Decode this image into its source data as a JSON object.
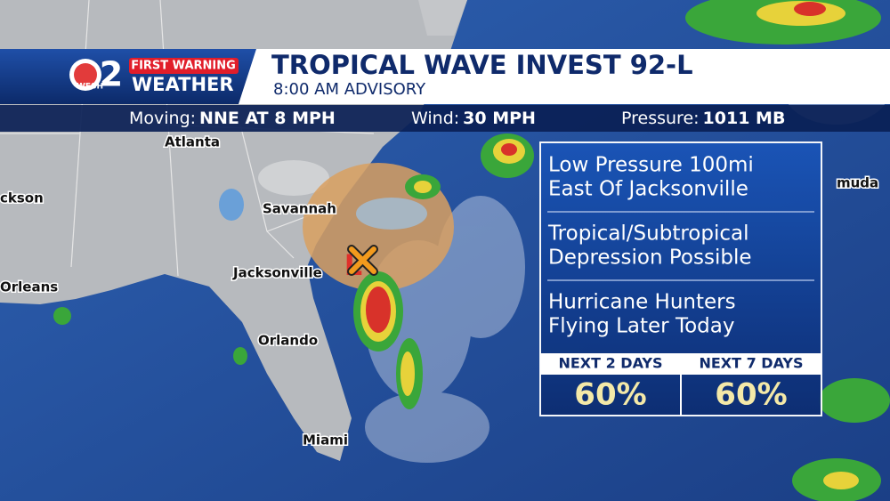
{
  "header": {
    "station": "WESH",
    "channel": "2",
    "brand_top": "FIRST WARNING",
    "brand_bottom": "WEATHER",
    "title": "TROPICAL WAVE INVEST 92-L",
    "subtitle": "8:00 AM ADVISORY"
  },
  "info_bar": [
    {
      "label": "Moving:",
      "value": "NNE AT 8 MPH"
    },
    {
      "label": "Wind:",
      "value": "30 MPH"
    },
    {
      "label": "Pressure:",
      "value": "1011 MB"
    }
  ],
  "map": {
    "cities": [
      "Atlanta",
      "Savannah",
      "Jacksonville",
      "Orlando",
      "Miami",
      "ckson",
      "Orleans",
      "muda"
    ],
    "low_marker": "L"
  },
  "panel": {
    "notes": [
      [
        "Low Pressure 100mi",
        "East Of Jacksonville"
      ],
      [
        "Tropical/Subtropical",
        "Depression Possible"
      ],
      [
        "Hurricane Hunters",
        "Flying Later Today"
      ]
    ],
    "outlook": [
      {
        "label": "NEXT 2 DAYS",
        "value": "60%"
      },
      {
        "label": "NEXT 7 DAYS",
        "value": "60%"
      }
    ]
  }
}
